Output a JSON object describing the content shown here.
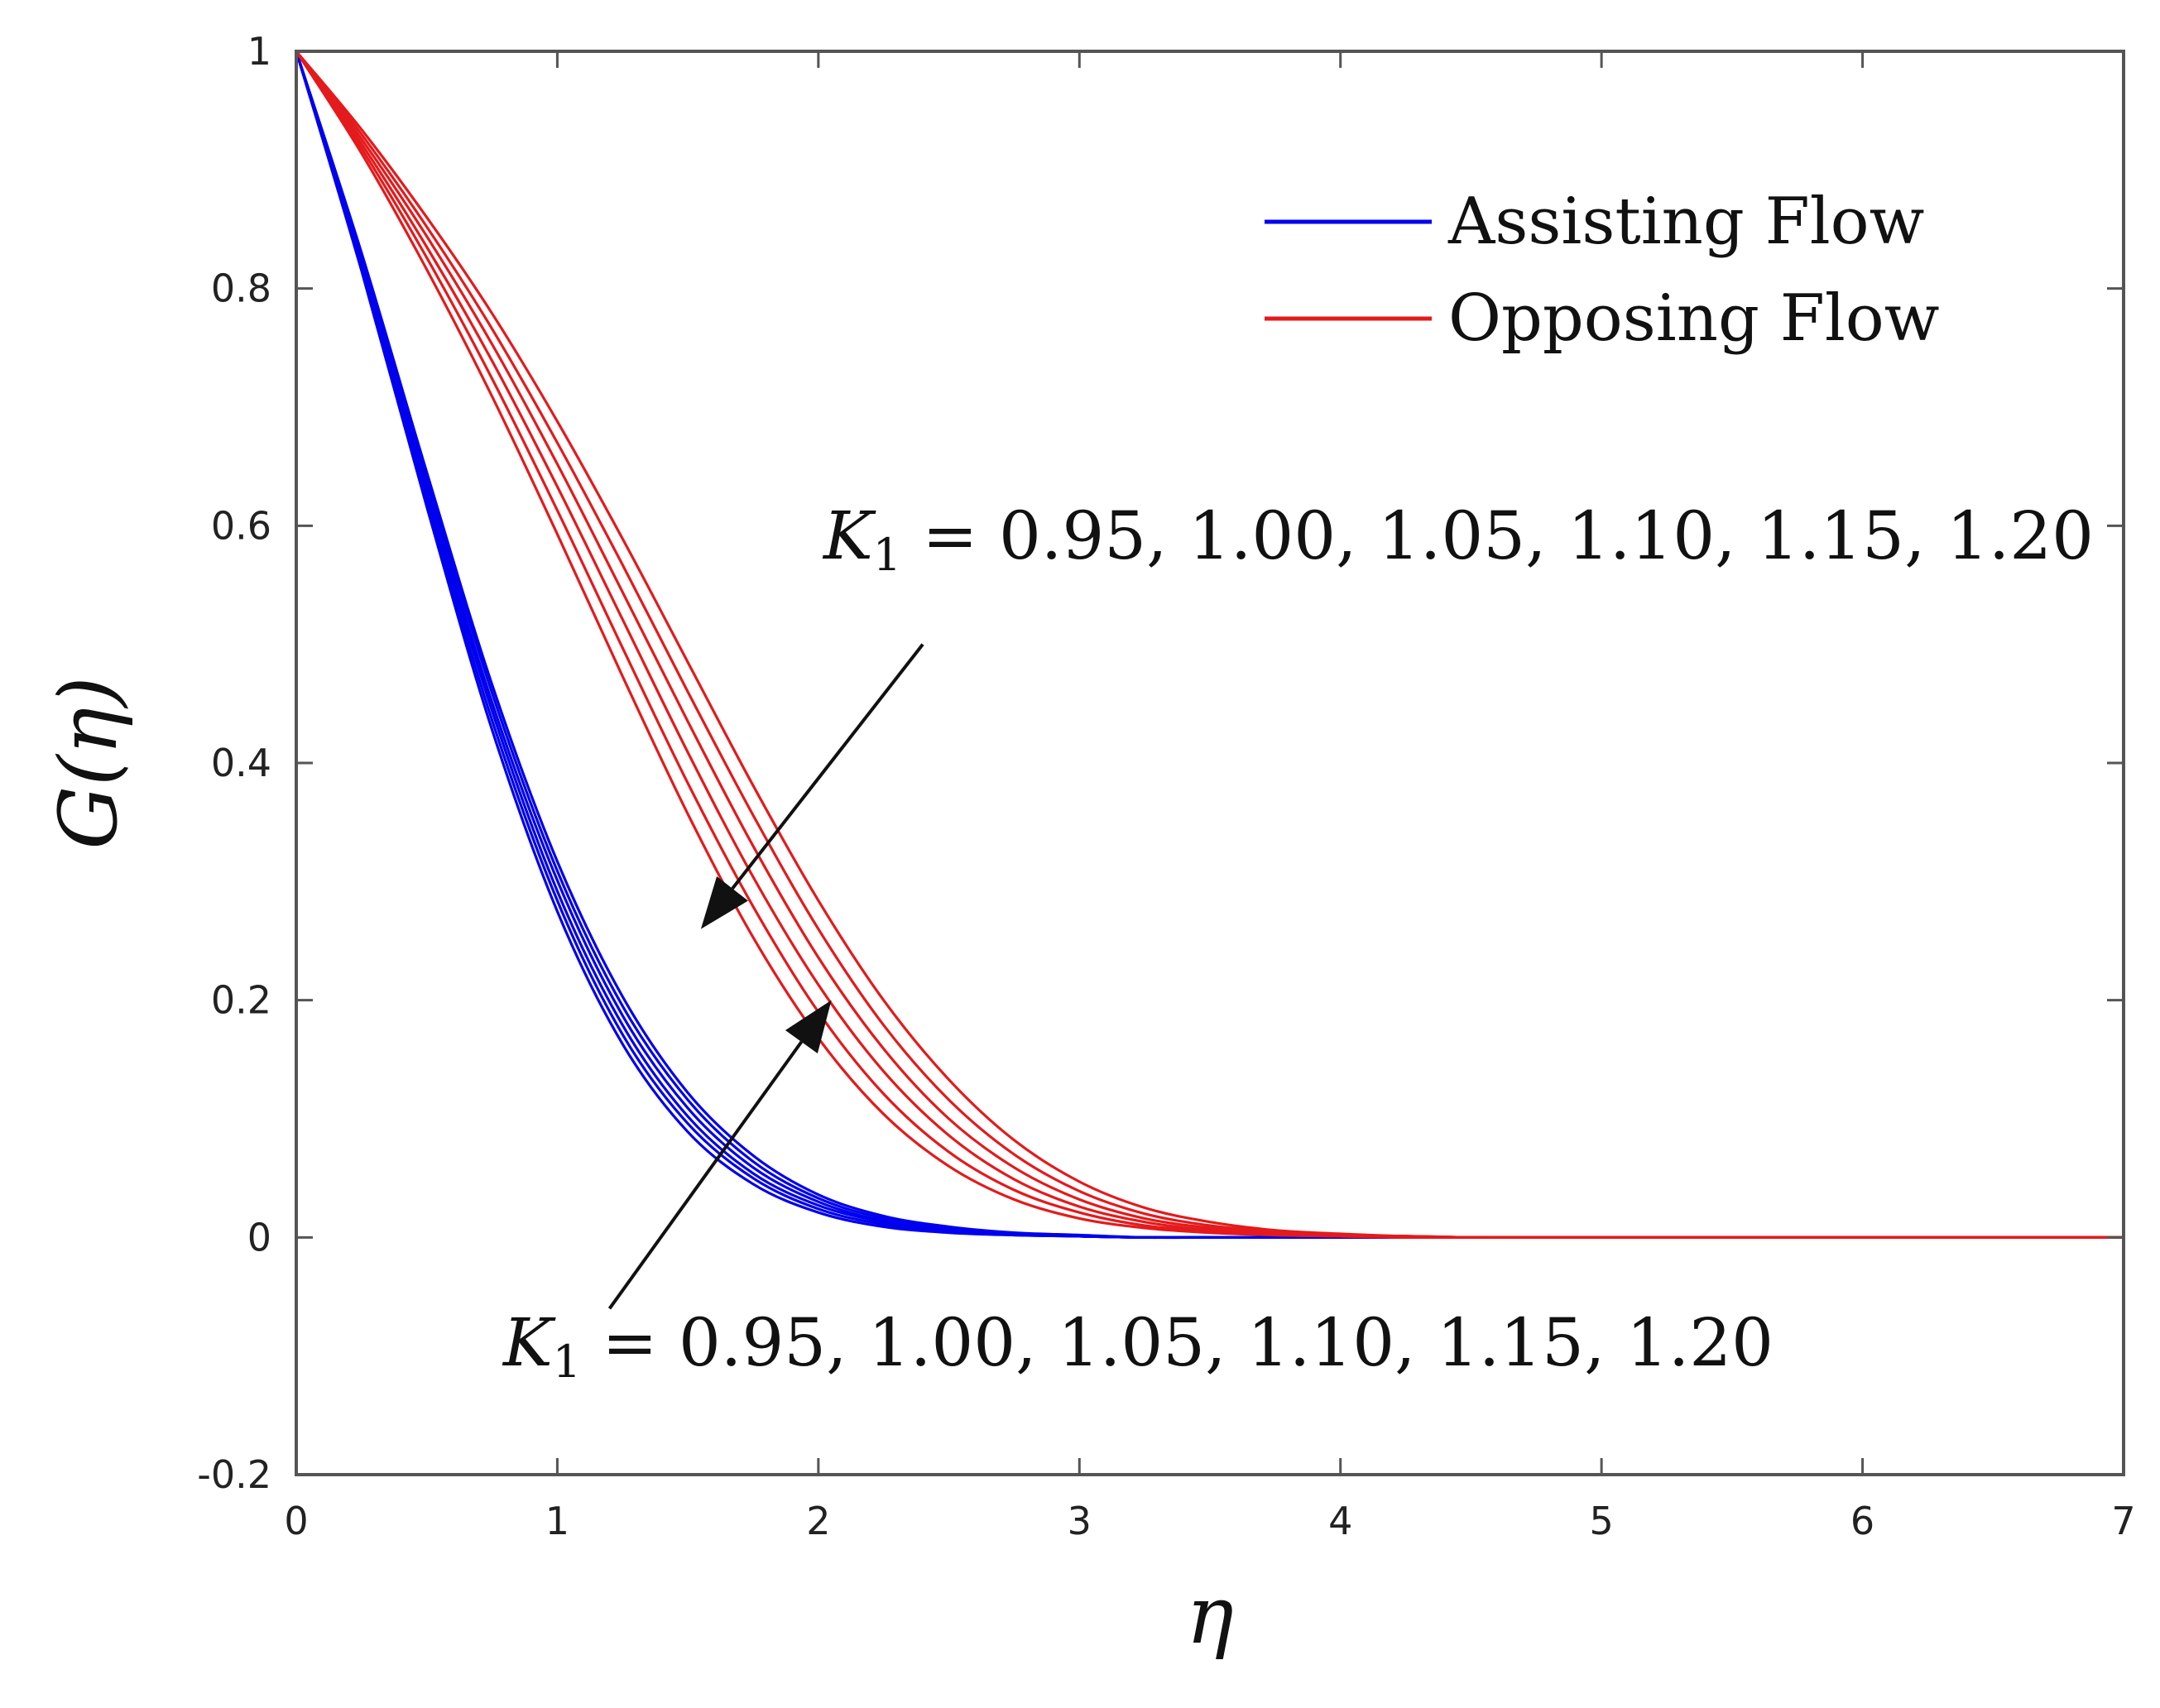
{
  "chart_data": {
    "type": "line",
    "title": "",
    "xlabel": "η",
    "ylabel": "G(η)",
    "xlim": [
      0,
      7
    ],
    "ylim": [
      -0.2,
      1
    ],
    "xticks": [
      0,
      1,
      2,
      3,
      4,
      5,
      6,
      7
    ],
    "xtick_labels": [
      "0",
      "1",
      "2",
      "3",
      "4",
      "5",
      "6",
      "7"
    ],
    "yticks": [
      -0.2,
      0,
      0.2,
      0.4,
      0.6,
      0.8,
      1
    ],
    "ytick_labels": [
      "-0.2",
      "0",
      "0.2",
      "0.4",
      "0.6",
      "0.8",
      "1"
    ],
    "grid": false,
    "legend_position": "top-right",
    "legend": [
      {
        "label": "Assisting Flow",
        "color": "#0000ee"
      },
      {
        "label": "Opposing Flow",
        "color": "#e41a1c"
      }
    ],
    "x": [
      0,
      0.25,
      0.5,
      0.75,
      1,
      1.25,
      1.5,
      1.75,
      2,
      2.25,
      2.5,
      2.75,
      3,
      3.25,
      3.5,
      3.75,
      4,
      4.25,
      4.5,
      4.75,
      5,
      5.5,
      6,
      6.5,
      7
    ],
    "series": [
      {
        "name": "Assisting Flow, K1 = 0.95",
        "group": "Assisting Flow",
        "color": "#0000ee",
        "values": [
          1,
          0.815,
          0.616,
          0.428,
          0.275,
          0.163,
          0.089,
          0.045,
          0.021,
          0.009,
          0.004,
          0.002,
          0.001,
          0,
          0,
          0,
          0,
          0,
          0,
          0,
          0,
          0,
          0,
          0,
          0
        ]
      },
      {
        "name": "Assisting Flow, K1 = 1.00",
        "group": "Assisting Flow",
        "color": "#0000ee",
        "values": [
          1,
          0.818,
          0.622,
          0.436,
          0.284,
          0.171,
          0.096,
          0.05,
          0.024,
          0.011,
          0.005,
          0.002,
          0.001,
          0,
          0,
          0,
          0,
          0,
          0,
          0,
          0,
          0,
          0,
          0,
          0
        ]
      },
      {
        "name": "Assisting Flow, K1 = 1.05",
        "group": "Assisting Flow",
        "color": "#0000ee",
        "values": [
          1,
          0.821,
          0.628,
          0.444,
          0.292,
          0.179,
          0.102,
          0.054,
          0.027,
          0.013,
          0.006,
          0.003,
          0.001,
          0,
          0,
          0,
          0,
          0,
          0,
          0,
          0,
          0,
          0,
          0,
          0
        ]
      },
      {
        "name": "Assisting Flow, K1 = 1.10",
        "group": "Assisting Flow",
        "color": "#0000ee",
        "values": [
          1,
          0.824,
          0.634,
          0.451,
          0.301,
          0.187,
          0.109,
          0.059,
          0.03,
          0.014,
          0.007,
          0.003,
          0.001,
          0,
          0,
          0,
          0,
          0,
          0,
          0,
          0,
          0,
          0,
          0,
          0
        ]
      },
      {
        "name": "Assisting Flow, K1 = 1.15",
        "group": "Assisting Flow",
        "color": "#0000ee",
        "values": [
          1,
          0.827,
          0.64,
          0.459,
          0.309,
          0.195,
          0.116,
          0.064,
          0.033,
          0.016,
          0.008,
          0.003,
          0.001,
          0,
          0,
          0,
          0,
          0,
          0,
          0,
          0,
          0,
          0,
          0,
          0
        ]
      },
      {
        "name": "Assisting Flow, K1 = 1.20",
        "group": "Assisting Flow",
        "color": "#0000ee",
        "values": [
          1,
          0.83,
          0.645,
          0.466,
          0.317,
          0.203,
          0.122,
          0.069,
          0.036,
          0.018,
          0.009,
          0.004,
          0.002,
          0,
          0,
          0,
          0,
          0,
          0,
          0,
          0,
          0,
          0,
          0,
          0
        ]
      },
      {
        "name": "Opposing Flow, K1 = 0.95",
        "group": "Opposing Flow",
        "color": "#e41a1c",
        "values": [
          1,
          0.914,
          0.816,
          0.709,
          0.593,
          0.473,
          0.357,
          0.253,
          0.168,
          0.104,
          0.06,
          0.032,
          0.016,
          0.008,
          0.004,
          0.002,
          0.001,
          0,
          0,
          0,
          0,
          0,
          0,
          0,
          0
        ]
      },
      {
        "name": "Opposing Flow, K1 = 1.00",
        "group": "Opposing Flow",
        "color": "#e41a1c",
        "values": [
          1,
          0.918,
          0.826,
          0.724,
          0.613,
          0.497,
          0.383,
          0.279,
          0.19,
          0.121,
          0.072,
          0.04,
          0.021,
          0.01,
          0.005,
          0.002,
          0.001,
          0,
          0,
          0,
          0,
          0,
          0,
          0,
          0
        ]
      },
      {
        "name": "Opposing Flow, K1 = 1.05",
        "group": "Opposing Flow",
        "color": "#e41a1c",
        "values": [
          1,
          0.922,
          0.835,
          0.739,
          0.633,
          0.521,
          0.409,
          0.304,
          0.213,
          0.14,
          0.086,
          0.049,
          0.026,
          0.013,
          0.006,
          0.003,
          0.001,
          0.001,
          0,
          0,
          0,
          0,
          0,
          0,
          0
        ]
      },
      {
        "name": "Opposing Flow, K1 = 1.10",
        "group": "Opposing Flow",
        "color": "#e41a1c",
        "values": [
          1,
          0.926,
          0.844,
          0.753,
          0.652,
          0.544,
          0.435,
          0.33,
          0.236,
          0.159,
          0.1,
          0.059,
          0.032,
          0.016,
          0.008,
          0.004,
          0.002,
          0.001,
          0,
          0,
          0,
          0,
          0,
          0,
          0
        ]
      },
      {
        "name": "Opposing Flow, K1 = 1.15",
        "group": "Opposing Flow",
        "color": "#e41a1c",
        "values": [
          1,
          0.93,
          0.852,
          0.766,
          0.67,
          0.567,
          0.46,
          0.356,
          0.26,
          0.179,
          0.116,
          0.07,
          0.039,
          0.02,
          0.01,
          0.005,
          0.002,
          0.001,
          0,
          0,
          0,
          0,
          0,
          0,
          0
        ]
      },
      {
        "name": "Opposing Flow, K1 = 1.20",
        "group": "Opposing Flow",
        "color": "#e41a1c",
        "values": [
          1,
          0.934,
          0.86,
          0.779,
          0.688,
          0.589,
          0.485,
          0.381,
          0.284,
          0.2,
          0.133,
          0.082,
          0.047,
          0.025,
          0.013,
          0.006,
          0.003,
          0.001,
          0,
          0,
          0,
          0,
          0,
          0,
          0
        ]
      }
    ],
    "annotations": [
      {
        "var": "K",
        "sub": "1",
        "text": " = 0.95, 1.00, 1.05, 1.10, 1.15, 1.20",
        "target": "Opposing Flow",
        "arrow_from": [
          2.4,
          0.5
        ],
        "arrow_to": [
          1.55,
          0.26
        ]
      },
      {
        "var": "K",
        "sub": "1",
        "text": " = 0.95, 1.00, 1.05, 1.10, 1.15, 1.20",
        "target": "Assisting Flow",
        "arrow_from": [
          1.2,
          -0.06
        ],
        "arrow_to": [
          2.05,
          0.2
        ]
      }
    ]
  }
}
